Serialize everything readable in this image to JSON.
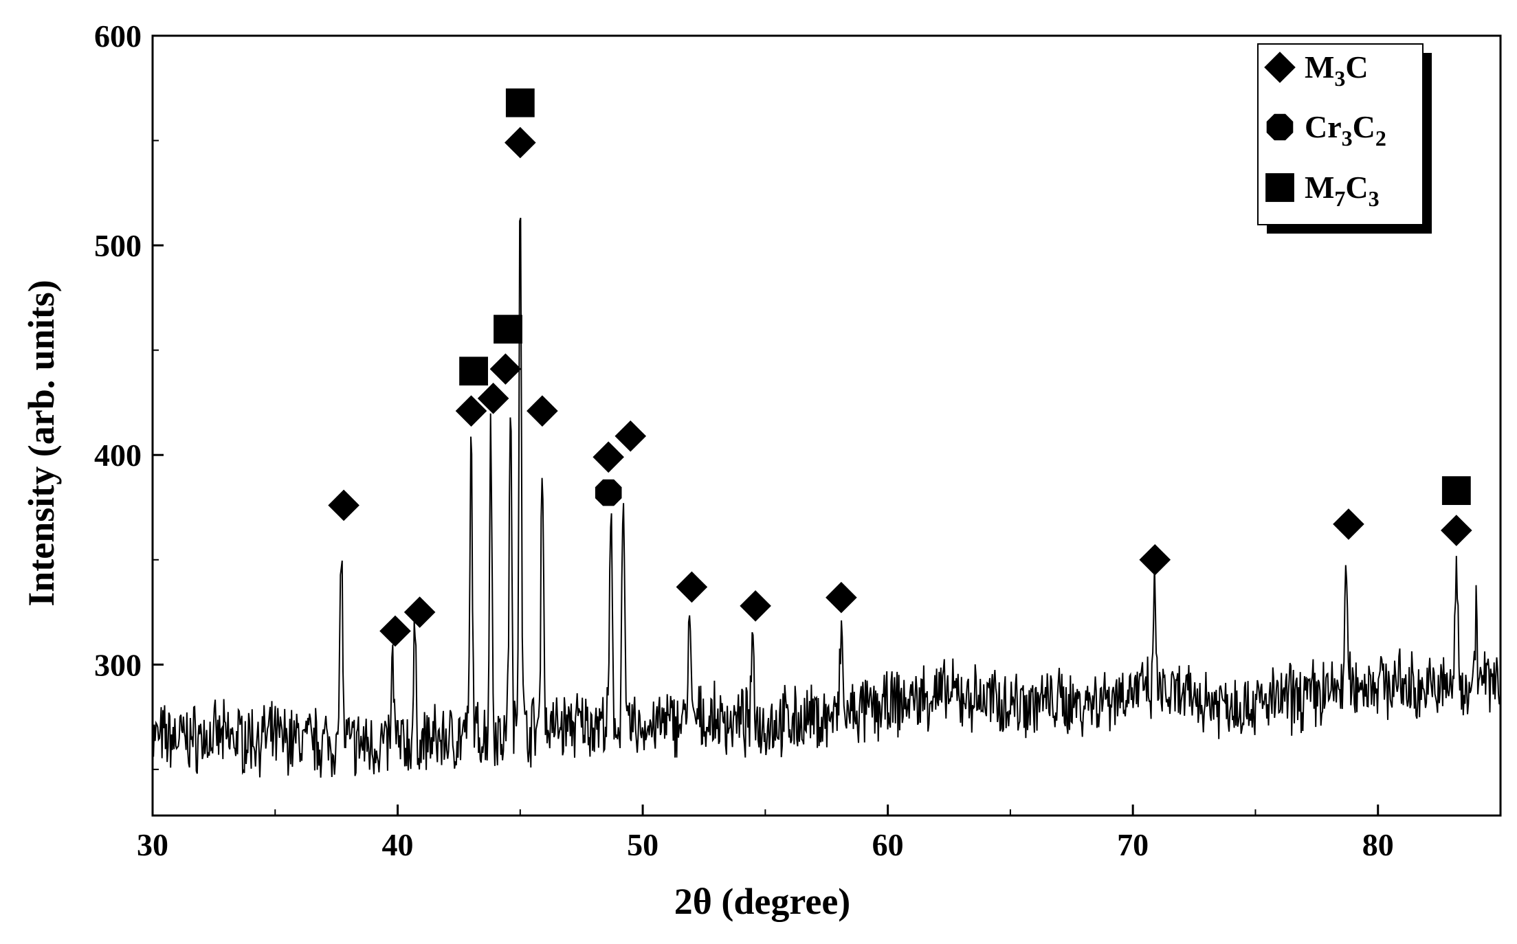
{
  "chart_data": {
    "type": "line",
    "title": "",
    "xlabel": "2θ (degree)",
    "ylabel": "Intensity (arb. units)",
    "xlim": [
      30,
      85
    ],
    "ylim": [
      228,
      600
    ],
    "x_ticks": [
      30,
      40,
      50,
      60,
      70,
      80
    ],
    "y_ticks": [
      300,
      400,
      500,
      600
    ],
    "grid": false,
    "legend_position": "top-right",
    "legend": [
      {
        "symbol": "diamond",
        "base": "M",
        "sub1": "3",
        "mid": "C",
        "sub2": ""
      },
      {
        "symbol": "octagon",
        "base": "Cr",
        "sub1": "3",
        "mid": "C",
        "sub2": "2"
      },
      {
        "symbol": "square",
        "base": "M",
        "sub1": "7",
        "mid": "C",
        "sub2": "3"
      }
    ],
    "series": [
      {
        "baseline": [
          [
            30,
            265
          ],
          [
            35,
            265
          ],
          [
            38,
            262
          ],
          [
            40,
            262
          ],
          [
            43,
            266
          ],
          [
            46,
            270
          ],
          [
            48,
            272
          ],
          [
            50,
            270
          ],
          [
            52,
            274
          ],
          [
            55,
            272
          ],
          [
            58,
            275
          ],
          [
            60,
            280
          ],
          [
            62,
            286
          ],
          [
            65,
            282
          ],
          [
            68,
            282
          ],
          [
            70,
            288
          ],
          [
            72,
            284
          ],
          [
            75,
            281
          ],
          [
            77,
            285
          ],
          [
            80,
            292
          ],
          [
            82,
            288
          ],
          [
            84,
            292
          ],
          [
            85,
            292
          ]
        ],
        "peaks": [
          {
            "x": 37.7,
            "y": 362
          },
          {
            "x": 39.8,
            "y": 302
          },
          {
            "x": 40.7,
            "y": 311
          },
          {
            "x": 43.0,
            "y": 405
          },
          {
            "x": 43.8,
            "y": 412
          },
          {
            "x": 44.6,
            "y": 429
          },
          {
            "x": 45.0,
            "y": 534
          },
          {
            "x": 45.9,
            "y": 408
          },
          {
            "x": 48.7,
            "y": 370
          },
          {
            "x": 49.2,
            "y": 389
          },
          {
            "x": 51.9,
            "y": 324
          },
          {
            "x": 54.5,
            "y": 313
          },
          {
            "x": 58.1,
            "y": 318
          },
          {
            "x": 70.9,
            "y": 336
          },
          {
            "x": 78.7,
            "y": 350
          },
          {
            "x": 83.2,
            "y": 350
          },
          {
            "x": 84.0,
            "y": 324
          }
        ]
      }
    ],
    "markers": [
      {
        "symbol": "diamond",
        "x": 37.8,
        "y": 376
      },
      {
        "symbol": "diamond",
        "x": 39.9,
        "y": 316
      },
      {
        "symbol": "diamond",
        "x": 40.9,
        "y": 325
      },
      {
        "symbol": "diamond",
        "x": 43.0,
        "y": 421
      },
      {
        "symbol": "square",
        "x": 43.1,
        "y": 440
      },
      {
        "symbol": "diamond",
        "x": 43.9,
        "y": 427
      },
      {
        "symbol": "diamond",
        "x": 44.4,
        "y": 441
      },
      {
        "symbol": "square",
        "x": 44.5,
        "y": 460
      },
      {
        "symbol": "diamond",
        "x": 45.0,
        "y": 549
      },
      {
        "symbol": "square",
        "x": 45.0,
        "y": 568
      },
      {
        "symbol": "diamond",
        "x": 45.9,
        "y": 421
      },
      {
        "symbol": "diamond",
        "x": 48.6,
        "y": 399
      },
      {
        "symbol": "octagon",
        "x": 48.6,
        "y": 382
      },
      {
        "symbol": "diamond",
        "x": 49.5,
        "y": 409
      },
      {
        "symbol": "diamond",
        "x": 52.0,
        "y": 337
      },
      {
        "symbol": "diamond",
        "x": 54.6,
        "y": 328
      },
      {
        "symbol": "diamond",
        "x": 58.1,
        "y": 332
      },
      {
        "symbol": "diamond",
        "x": 70.9,
        "y": 350
      },
      {
        "symbol": "diamond",
        "x": 78.8,
        "y": 367
      },
      {
        "symbol": "diamond",
        "x": 83.2,
        "y": 364
      },
      {
        "symbol": "square",
        "x": 83.2,
        "y": 383
      }
    ]
  }
}
